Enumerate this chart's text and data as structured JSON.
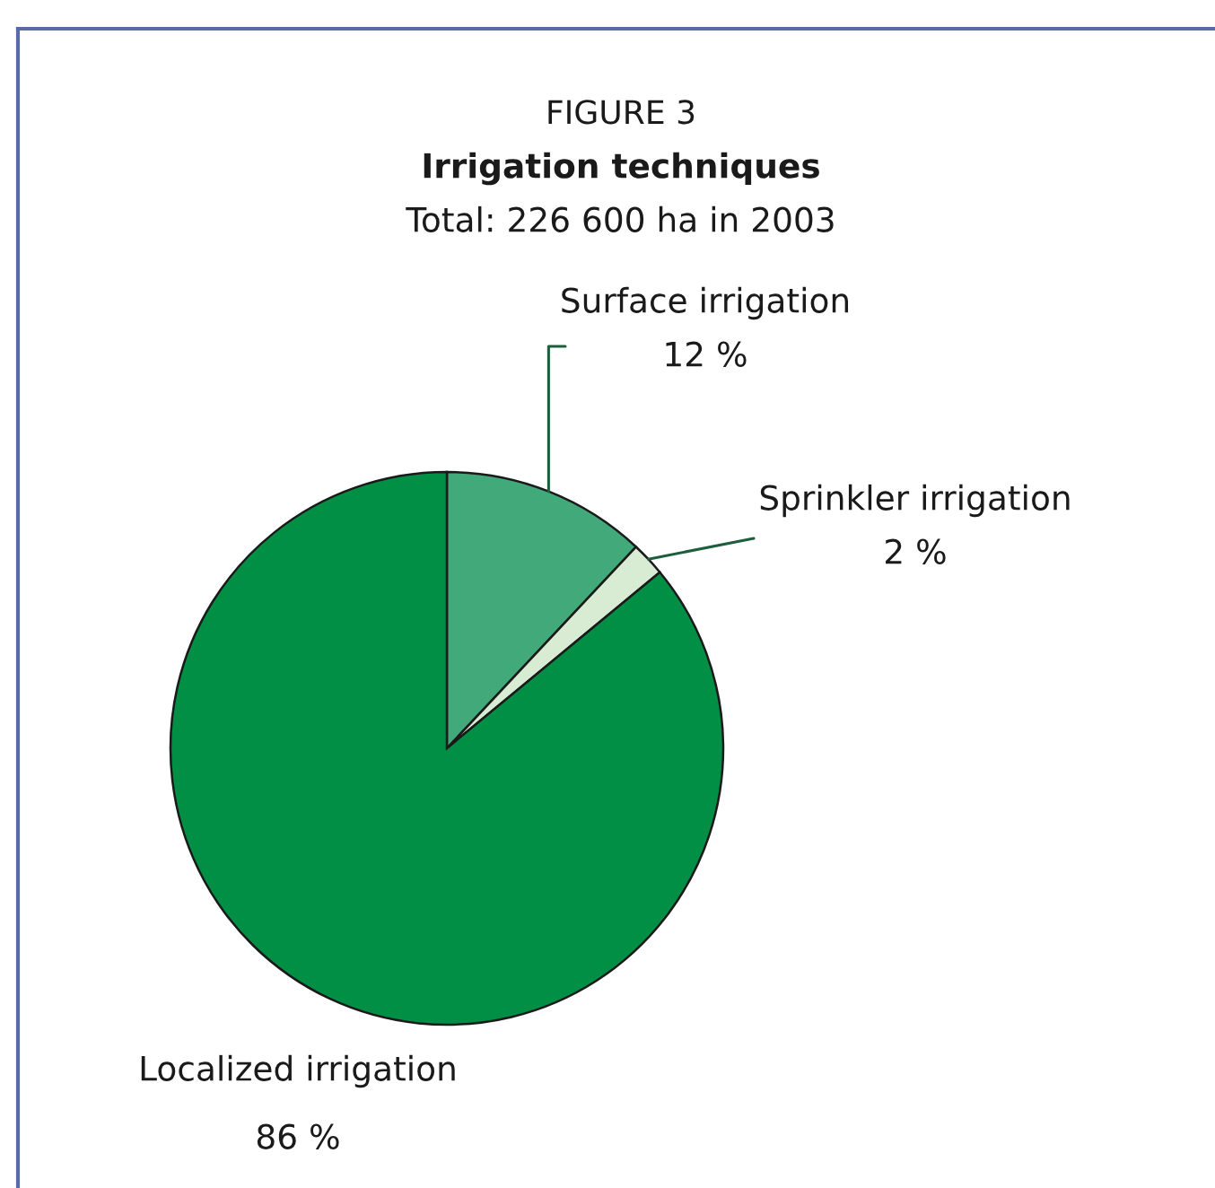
{
  "chart_data": {
    "type": "pie",
    "title": "Irrigation techniques",
    "subtitle": "Total: 226 600 ha in 2003",
    "annotations": [
      "FIGURE 3"
    ],
    "categories": [
      "Surface irrigation",
      "Sprinkler irrigation",
      "Localized irrigation"
    ],
    "values": [
      12,
      2,
      86
    ],
    "colors": [
      "#41a97a",
      "#d8ebd3",
      "#008f45"
    ],
    "value_labels": [
      "12 %",
      "2 %",
      "86 %"
    ]
  }
}
